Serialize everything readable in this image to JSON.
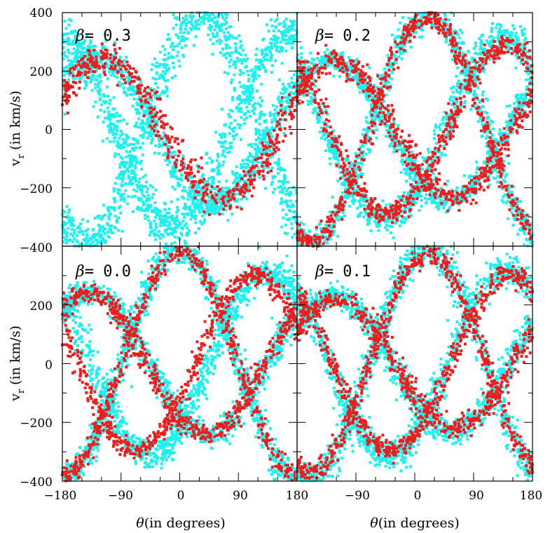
{
  "chart_data": {
    "type": "scatter",
    "title": "",
    "xlabel": "θ(in degrees)",
    "xlabel_symbol": "θ",
    "xlabel_text": "(in degrees)",
    "ylabel": "v_r (in km/s)",
    "ylabel_symbol": "v",
    "ylabel_subscript": "r",
    "ylabel_text": "(in km/s)",
    "xlim": [
      -180,
      180
    ],
    "ylim": [
      -400,
      400
    ],
    "xticks": [
      -180,
      -90,
      0,
      90,
      180
    ],
    "xtick_labels": [
      "−180",
      "−90",
      "0",
      "90",
      "180"
    ],
    "xtick_labels_right": [
      "180",
      "−90",
      "0",
      "90",
      "180"
    ],
    "yticks": [
      400,
      200,
      0,
      -200,
      -400
    ],
    "ytick_labels": [
      "400",
      "200",
      "0",
      "−200",
      "−400"
    ],
    "series_colors": {
      "cyan": "#1ef0f0",
      "red": "#ee1c1c"
    },
    "panels": [
      {
        "label_symbol": "β",
        "label_value": "= 0.3",
        "beta": 0.3,
        "series": [
          {
            "name": "cyan",
            "color": "#1ef0f0",
            "curves": [
              {
                "amp": 250,
                "phase": -130,
                "width": 40
              },
              {
                "amp": 390,
                "phase": 35,
                "width": 60
              },
              {
                "amp": 330,
                "phase": 170,
                "width": 55
              }
            ]
          },
          {
            "name": "red",
            "color": "#ee1c1c",
            "curves": [
              {
                "amp": 240,
                "phase": -115,
                "width": 38
              }
            ]
          }
        ]
      },
      {
        "label_symbol": "β",
        "label_value": "= 0.2",
        "beta": 0.2,
        "series": [
          {
            "name": "cyan",
            "color": "#1ef0f0",
            "curves": [
              {
                "amp": 240,
                "phase": -130,
                "width": 30
              },
              {
                "amp": 390,
                "phase": 20,
                "width": 40
              },
              {
                "amp": 310,
                "phase": 135,
                "width": 40
              }
            ]
          },
          {
            "name": "red",
            "color": "#ee1c1c",
            "curves": [
              {
                "amp": 230,
                "phase": -120,
                "width": 30
              },
              {
                "amp": 380,
                "phase": 20,
                "width": 30
              },
              {
                "amp": 290,
                "phase": 140,
                "width": 28
              }
            ]
          }
        ]
      },
      {
        "label_symbol": "β",
        "label_value": "= 0.0",
        "beta": 0.0,
        "series": [
          {
            "name": "cyan",
            "color": "#1ef0f0",
            "curves": [
              {
                "amp": 240,
                "phase": -135,
                "width": 30
              },
              {
                "amp": 390,
                "phase": 0,
                "width": 40
              },
              {
                "amp": 310,
                "phase": 135,
                "width": 38
              }
            ]
          },
          {
            "name": "red",
            "color": "#ee1c1c",
            "curves": [
              {
                "amp": 240,
                "phase": -140,
                "width": 26
              },
              {
                "amp": 380,
                "phase": 0,
                "width": 28
              },
              {
                "amp": 300,
                "phase": 115,
                "width": 26
              }
            ]
          }
        ]
      },
      {
        "label_symbol": "β",
        "label_value": "= 0.1",
        "beta": 0.1,
        "series": [
          {
            "name": "cyan",
            "color": "#1ef0f0",
            "curves": [
              {
                "amp": 230,
                "phase": -125,
                "width": 32
              },
              {
                "amp": 390,
                "phase": 20,
                "width": 42
              },
              {
                "amp": 320,
                "phase": 140,
                "width": 38
              }
            ]
          },
          {
            "name": "red",
            "color": "#ee1c1c",
            "curves": [
              {
                "amp": 220,
                "phase": -120,
                "width": 28
              },
              {
                "amp": 370,
                "phase": 20,
                "width": 28
              },
              {
                "amp": 300,
                "phase": 145,
                "width": 26
              }
            ]
          }
        ]
      }
    ]
  }
}
